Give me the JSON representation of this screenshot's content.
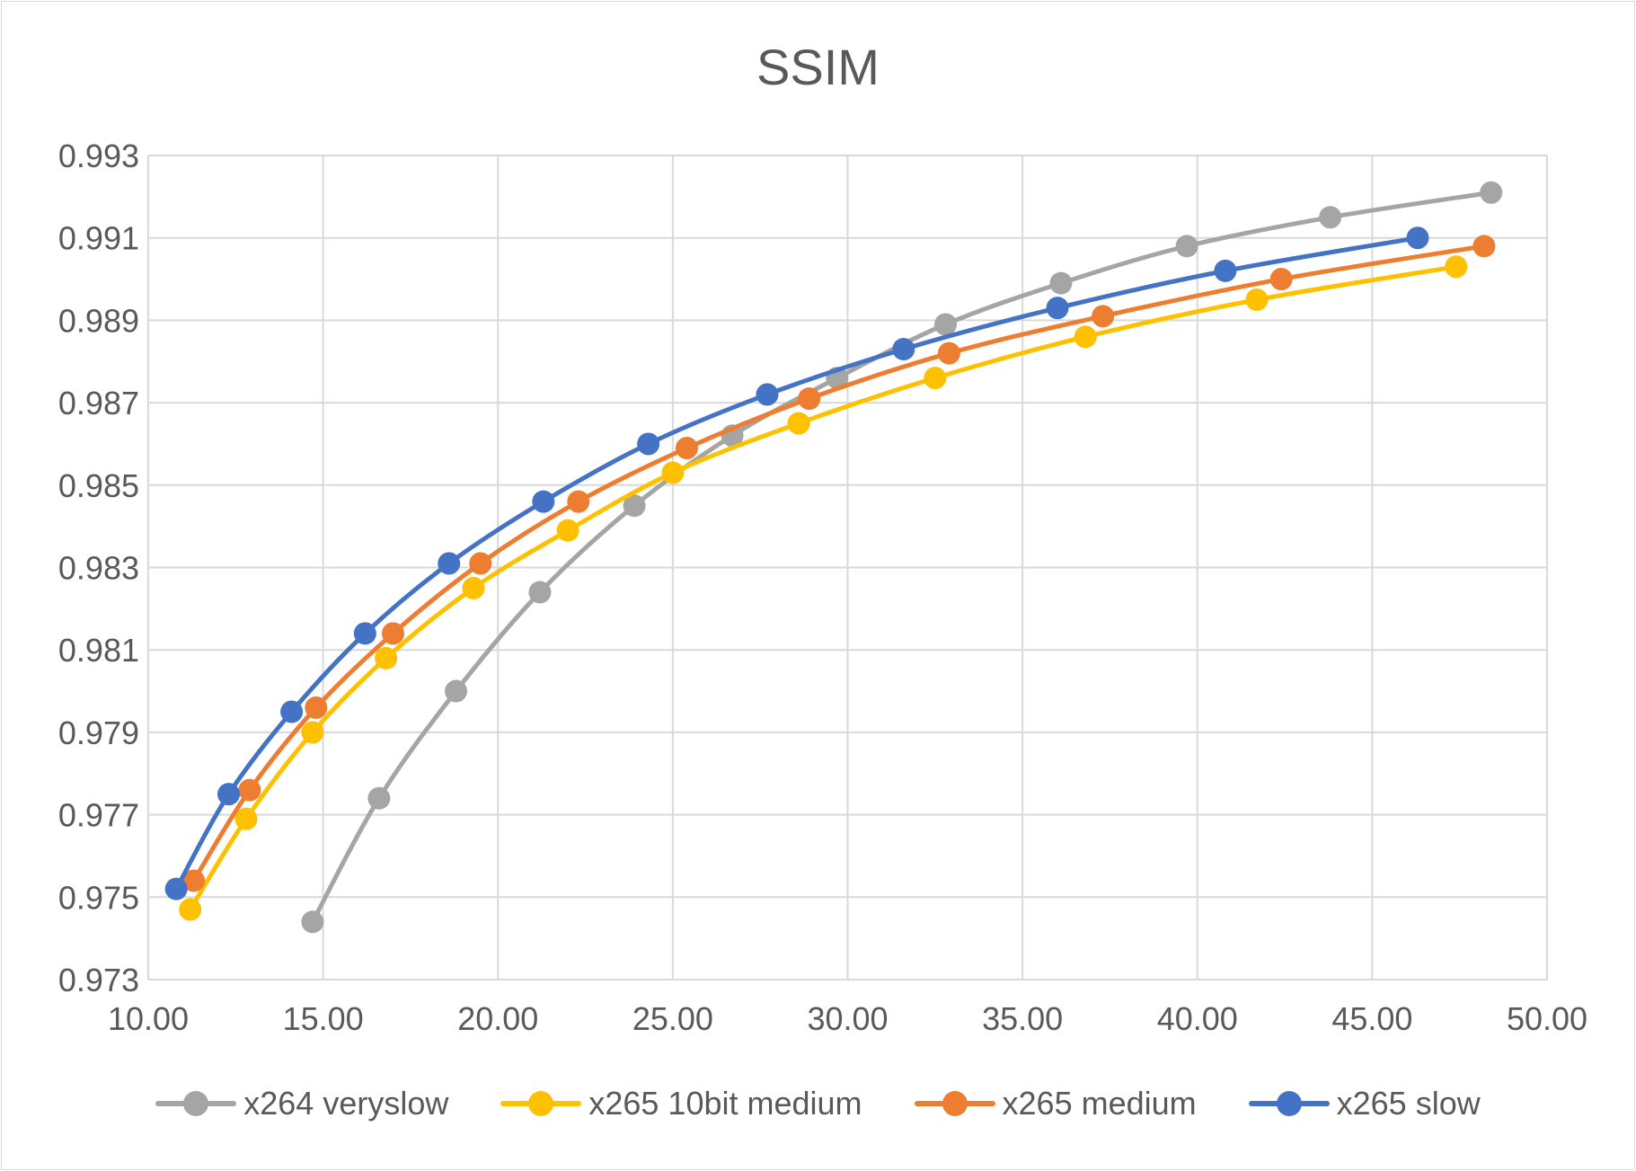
{
  "chart_data": {
    "type": "line",
    "title": "SSIM",
    "xlabel": "",
    "ylabel": "",
    "xlim": [
      10,
      50
    ],
    "ylim": [
      0.973,
      0.993
    ],
    "x_ticks": [
      "10.00",
      "15.00",
      "20.00",
      "25.00",
      "30.00",
      "35.00",
      "40.00",
      "45.00",
      "50.00"
    ],
    "y_ticks": [
      "0.973",
      "0.975",
      "0.977",
      "0.979",
      "0.981",
      "0.983",
      "0.985",
      "0.987",
      "0.989",
      "0.991",
      "0.993"
    ],
    "grid": true,
    "legend_position": "bottom",
    "series": [
      {
        "name": "x264 veryslow",
        "color": "#a5a5a5",
        "points": [
          [
            14.7,
            0.9744
          ],
          [
            16.6,
            0.9774
          ],
          [
            18.8,
            0.98
          ],
          [
            21.2,
            0.9824
          ],
          [
            23.9,
            0.9845
          ],
          [
            26.7,
            0.9862
          ],
          [
            29.7,
            0.9876
          ],
          [
            32.8,
            0.9889
          ],
          [
            36.1,
            0.9899
          ],
          [
            39.7,
            0.9908
          ],
          [
            43.8,
            0.9915
          ],
          [
            48.4,
            0.9921
          ]
        ]
      },
      {
        "name": "x265 10bit medium",
        "color": "#ffc000",
        "points": [
          [
            11.2,
            0.9747
          ],
          [
            12.8,
            0.9769
          ],
          [
            14.7,
            0.979
          ],
          [
            16.8,
            0.9808
          ],
          [
            19.3,
            0.9825
          ],
          [
            22.0,
            0.9839
          ],
          [
            25.0,
            0.9853
          ],
          [
            28.6,
            0.9865
          ],
          [
            32.5,
            0.9876
          ],
          [
            36.8,
            0.9886
          ],
          [
            41.7,
            0.9895
          ],
          [
            47.4,
            0.9903
          ]
        ]
      },
      {
        "name": "x265 medium",
        "color": "#ed7d31",
        "points": [
          [
            11.3,
            0.9754
          ],
          [
            12.9,
            0.9776
          ],
          [
            14.8,
            0.9796
          ],
          [
            17.0,
            0.9814
          ],
          [
            19.5,
            0.9831
          ],
          [
            22.3,
            0.9846
          ],
          [
            25.4,
            0.9859
          ],
          [
            28.9,
            0.9871
          ],
          [
            32.9,
            0.9882
          ],
          [
            37.3,
            0.9891
          ],
          [
            42.4,
            0.99
          ],
          [
            48.2,
            0.9908
          ]
        ]
      },
      {
        "name": "x265 slow",
        "color": "#4472c4",
        "points": [
          [
            10.8,
            0.9752
          ],
          [
            12.3,
            0.9775
          ],
          [
            14.1,
            0.9795
          ],
          [
            16.2,
            0.9814
          ],
          [
            18.6,
            0.9831
          ],
          [
            21.3,
            0.9846
          ],
          [
            24.3,
            0.986
          ],
          [
            27.7,
            0.9872
          ],
          [
            31.6,
            0.9883
          ],
          [
            36.0,
            0.9893
          ],
          [
            40.8,
            0.9902
          ],
          [
            46.3,
            0.991
          ]
        ]
      }
    ]
  }
}
